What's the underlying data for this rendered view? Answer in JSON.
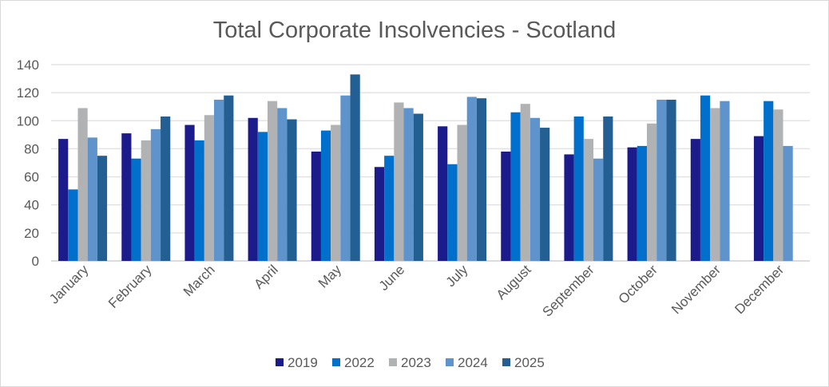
{
  "chart_data": {
    "type": "bar",
    "title": "Total Corporate Insolvencies - Scotland",
    "xlabel": "",
    "ylabel": "",
    "ylim": [
      0,
      140
    ],
    "yticks": [
      0,
      20,
      40,
      60,
      80,
      100,
      120,
      140
    ],
    "grid": true,
    "legend_placement": "bottom",
    "categories": [
      "January",
      "February",
      "March",
      "April",
      "May",
      "June",
      "July",
      "August",
      "September",
      "October",
      "November",
      "December"
    ],
    "series": [
      {
        "name": "2019",
        "color": "#1b1b8c",
        "values": [
          87,
          91,
          97,
          102,
          78,
          67,
          96,
          78,
          76,
          81,
          87,
          89
        ]
      },
      {
        "name": "2022",
        "color": "#0070cc",
        "values": [
          51,
          73,
          86,
          92,
          93,
          75,
          69,
          106,
          103,
          82,
          118,
          114
        ]
      },
      {
        "name": "2023",
        "color": "#b0b2b3",
        "values": [
          109,
          86,
          104,
          114,
          97,
          113,
          97,
          112,
          87,
          98,
          109,
          108
        ]
      },
      {
        "name": "2024",
        "color": "#5e93cc",
        "values": [
          88,
          94,
          115,
          109,
          118,
          109,
          117,
          102,
          73,
          115,
          114,
          82
        ]
      },
      {
        "name": "2025",
        "color": "#245f93",
        "values": [
          75,
          103,
          118,
          101,
          133,
          105,
          116,
          95,
          103,
          115,
          null,
          null
        ]
      }
    ]
  }
}
